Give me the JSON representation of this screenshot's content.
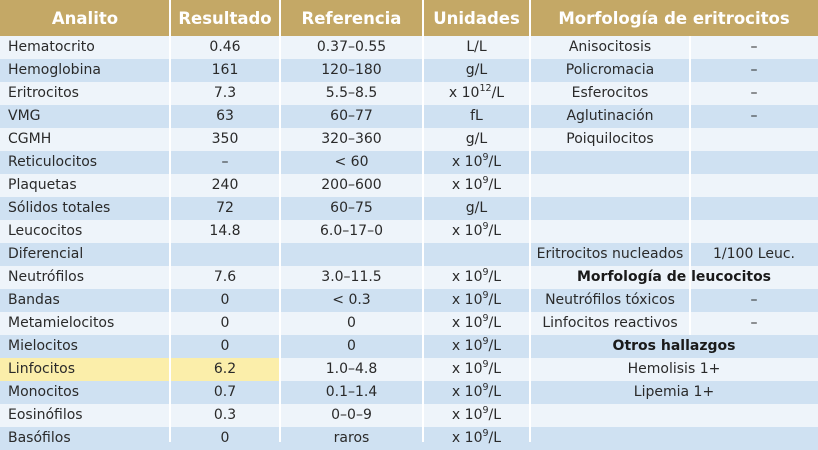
{
  "colors": {
    "header": "#c4a866",
    "stripe_blue": "#cfe1f2",
    "stripe_light": "#eef4fa",
    "highlight": "#fbeeaa"
  },
  "headers": {
    "analito": "Analito",
    "resultado": "Resultado",
    "referencia": "Referencia",
    "unidades": "Unidades",
    "morfologia": "Morfología de eritrocitos"
  },
  "unit_labels": {
    "x109": "x 10",
    "x1012": "x 10",
    "per_l": "/L",
    "exp9": "9",
    "exp12": "12"
  },
  "rows": [
    {
      "analito": "Hematocrito",
      "resultado": "0.46",
      "referencia": "0.37–0.55",
      "unidades": "L/L",
      "right_name": "Anisocitosis",
      "right_value": "–"
    },
    {
      "analito": "Hemoglobina",
      "resultado": "161",
      "referencia": "120–180",
      "unidades": "g/L",
      "right_name": "Policromacia",
      "right_value": "–"
    },
    {
      "analito": "Eritrocitos",
      "resultado": "7.3",
      "referencia": "5.5–8.5",
      "unidades": "x1012",
      "right_name": "Esferocitos",
      "right_value": "–"
    },
    {
      "analito": "VMG",
      "resultado": "63",
      "referencia": "60–77",
      "unidades": "fL",
      "right_name": "Aglutinación",
      "right_value": "–"
    },
    {
      "analito": "CGMH",
      "resultado": "350",
      "referencia": "320–360",
      "unidades": "g/L",
      "right_name": "Poiquilocitos",
      "right_value": ""
    },
    {
      "analito": "Reticulocitos",
      "resultado": "–",
      "referencia": "< 60",
      "unidades": "x109",
      "right_name": "",
      "right_value": ""
    },
    {
      "analito": "Plaquetas",
      "resultado": "240",
      "referencia": "200–600",
      "unidades": "x109",
      "right_name": "",
      "right_value": ""
    },
    {
      "analito": "Sólidos totales",
      "resultado": "72",
      "referencia": "60–75",
      "unidades": "g/L",
      "right_name": "",
      "right_value": ""
    },
    {
      "analito": "Leucocitos",
      "resultado": "14.8",
      "referencia": "6.0–17–0",
      "unidades": "x109",
      "right_name": "",
      "right_value": ""
    },
    {
      "analito": "Diferencial",
      "resultado": "",
      "referencia": "",
      "unidades": "",
      "right_name": "Eritrocitos nucleados",
      "right_value": "1/100 Leuc."
    },
    {
      "analito": "Neutrófilos",
      "resultado": "7.6",
      "referencia": "3.0–11.5",
      "unidades": "x109",
      "right_title": "Morfología de leucocitos"
    },
    {
      "analito": "Bandas",
      "resultado": "0",
      "referencia": "< 0.3",
      "unidades": "x109",
      "right_name": "Neutrófilos tóxicos",
      "right_value": "–"
    },
    {
      "analito": "Metamielocitos",
      "resultado": "0",
      "referencia": "0",
      "unidades": "x109",
      "right_name": "Linfocitos reactivos",
      "right_value": "–"
    },
    {
      "analito": "Mielocitos",
      "resultado": "0",
      "referencia": "0",
      "unidades": "x109",
      "right_title": "Otros hallazgos"
    },
    {
      "analito": "Linfocitos",
      "resultado": "6.2",
      "referencia": "1.0–4.8",
      "unidades": "x109",
      "right_full": "Hemolisis 1+",
      "highlight": true
    },
    {
      "analito": "Monocitos",
      "resultado": "0.7",
      "referencia": "0.1–1.4",
      "unidades": "x109",
      "right_full": "Lipemia 1+"
    },
    {
      "analito": "Eosinófilos",
      "resultado": "0.3",
      "referencia": "0–0–9",
      "unidades": "x109"
    },
    {
      "analito": "Basófilos",
      "resultado": "0",
      "referencia": "raros",
      "unidades": "x109"
    }
  ]
}
